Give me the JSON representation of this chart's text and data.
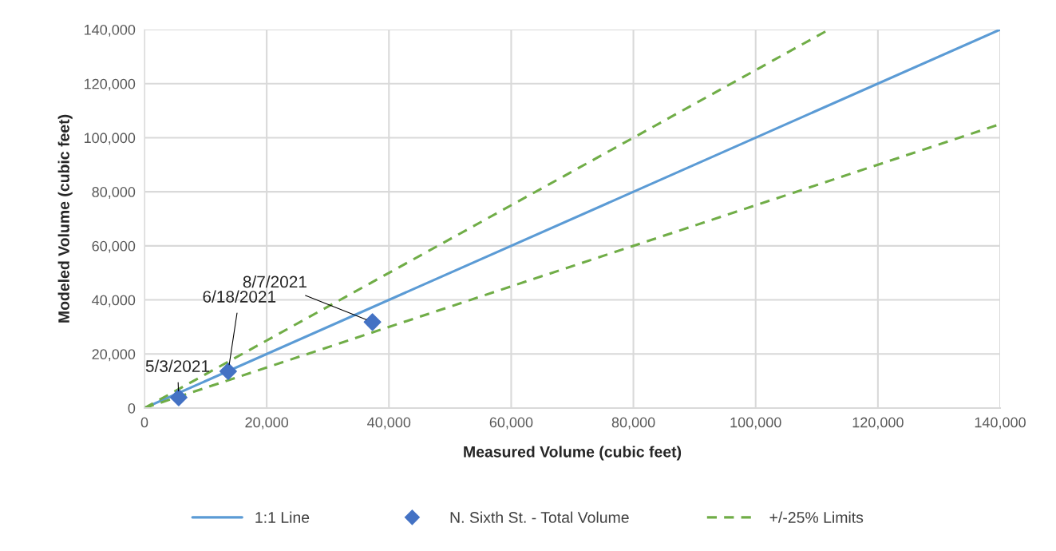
{
  "chart_data": {
    "type": "scatter",
    "xlabel": "Measured Volume (cubic feet)",
    "ylabel": "Modeled Volume (cubic feet)",
    "xlim": [
      0,
      140000
    ],
    "ylim": [
      0,
      140000
    ],
    "xticks": [
      {
        "value": 0,
        "label": "0"
      },
      {
        "value": 20000,
        "label": "20,000"
      },
      {
        "value": 40000,
        "label": "40,000"
      },
      {
        "value": 60000,
        "label": "60,000"
      },
      {
        "value": 80000,
        "label": "80,000"
      },
      {
        "value": 100000,
        "label": "100,000"
      },
      {
        "value": 120000,
        "label": "120,000"
      },
      {
        "value": 140000,
        "label": "140,000"
      }
    ],
    "yticks": [
      {
        "value": 0,
        "label": "0"
      },
      {
        "value": 20000,
        "label": "20,000"
      },
      {
        "value": 40000,
        "label": "40,000"
      },
      {
        "value": 60000,
        "label": "60,000"
      },
      {
        "value": 80000,
        "label": "80,000"
      },
      {
        "value": 100000,
        "label": "100,000"
      },
      {
        "value": 120000,
        "label": "120,000"
      },
      {
        "value": 140000,
        "label": "140,000"
      }
    ],
    "grid": true,
    "legend": "bottom",
    "series": [
      {
        "name": "1:1 Line",
        "type": "line",
        "color": "#5b9bd5",
        "line_style": "solid",
        "marker": "none",
        "x": [
          0,
          140000
        ],
        "values": [
          0,
          140000
        ]
      },
      {
        "name": "N. Sixth St. - Total Volume",
        "color": "#4472c4",
        "marker": "diamond",
        "x": [
          5600,
          13700,
          37300
        ],
        "values": [
          3900,
          13600,
          31800
        ]
      },
      {
        "name": "+/-25% Limits",
        "type": "line",
        "color": "#70ad47",
        "line_style": "dashed",
        "marker": "none",
        "x": [
          0,
          112000
        ],
        "values": [
          0,
          140000
        ]
      },
      {
        "type": "line",
        "color": "#70ad47",
        "line_style": "dashed",
        "marker": "none",
        "x": [
          0,
          140000
        ],
        "values": [
          0,
          105000
        ]
      }
    ],
    "annotations": [
      {
        "text": "5/3/2021",
        "x": 5600,
        "y": 3900
      },
      {
        "text": "6/18/2021",
        "x": 13700,
        "y": 13600
      },
      {
        "text": "8/7/2021",
        "x": 37300,
        "y": 31800
      }
    ]
  }
}
